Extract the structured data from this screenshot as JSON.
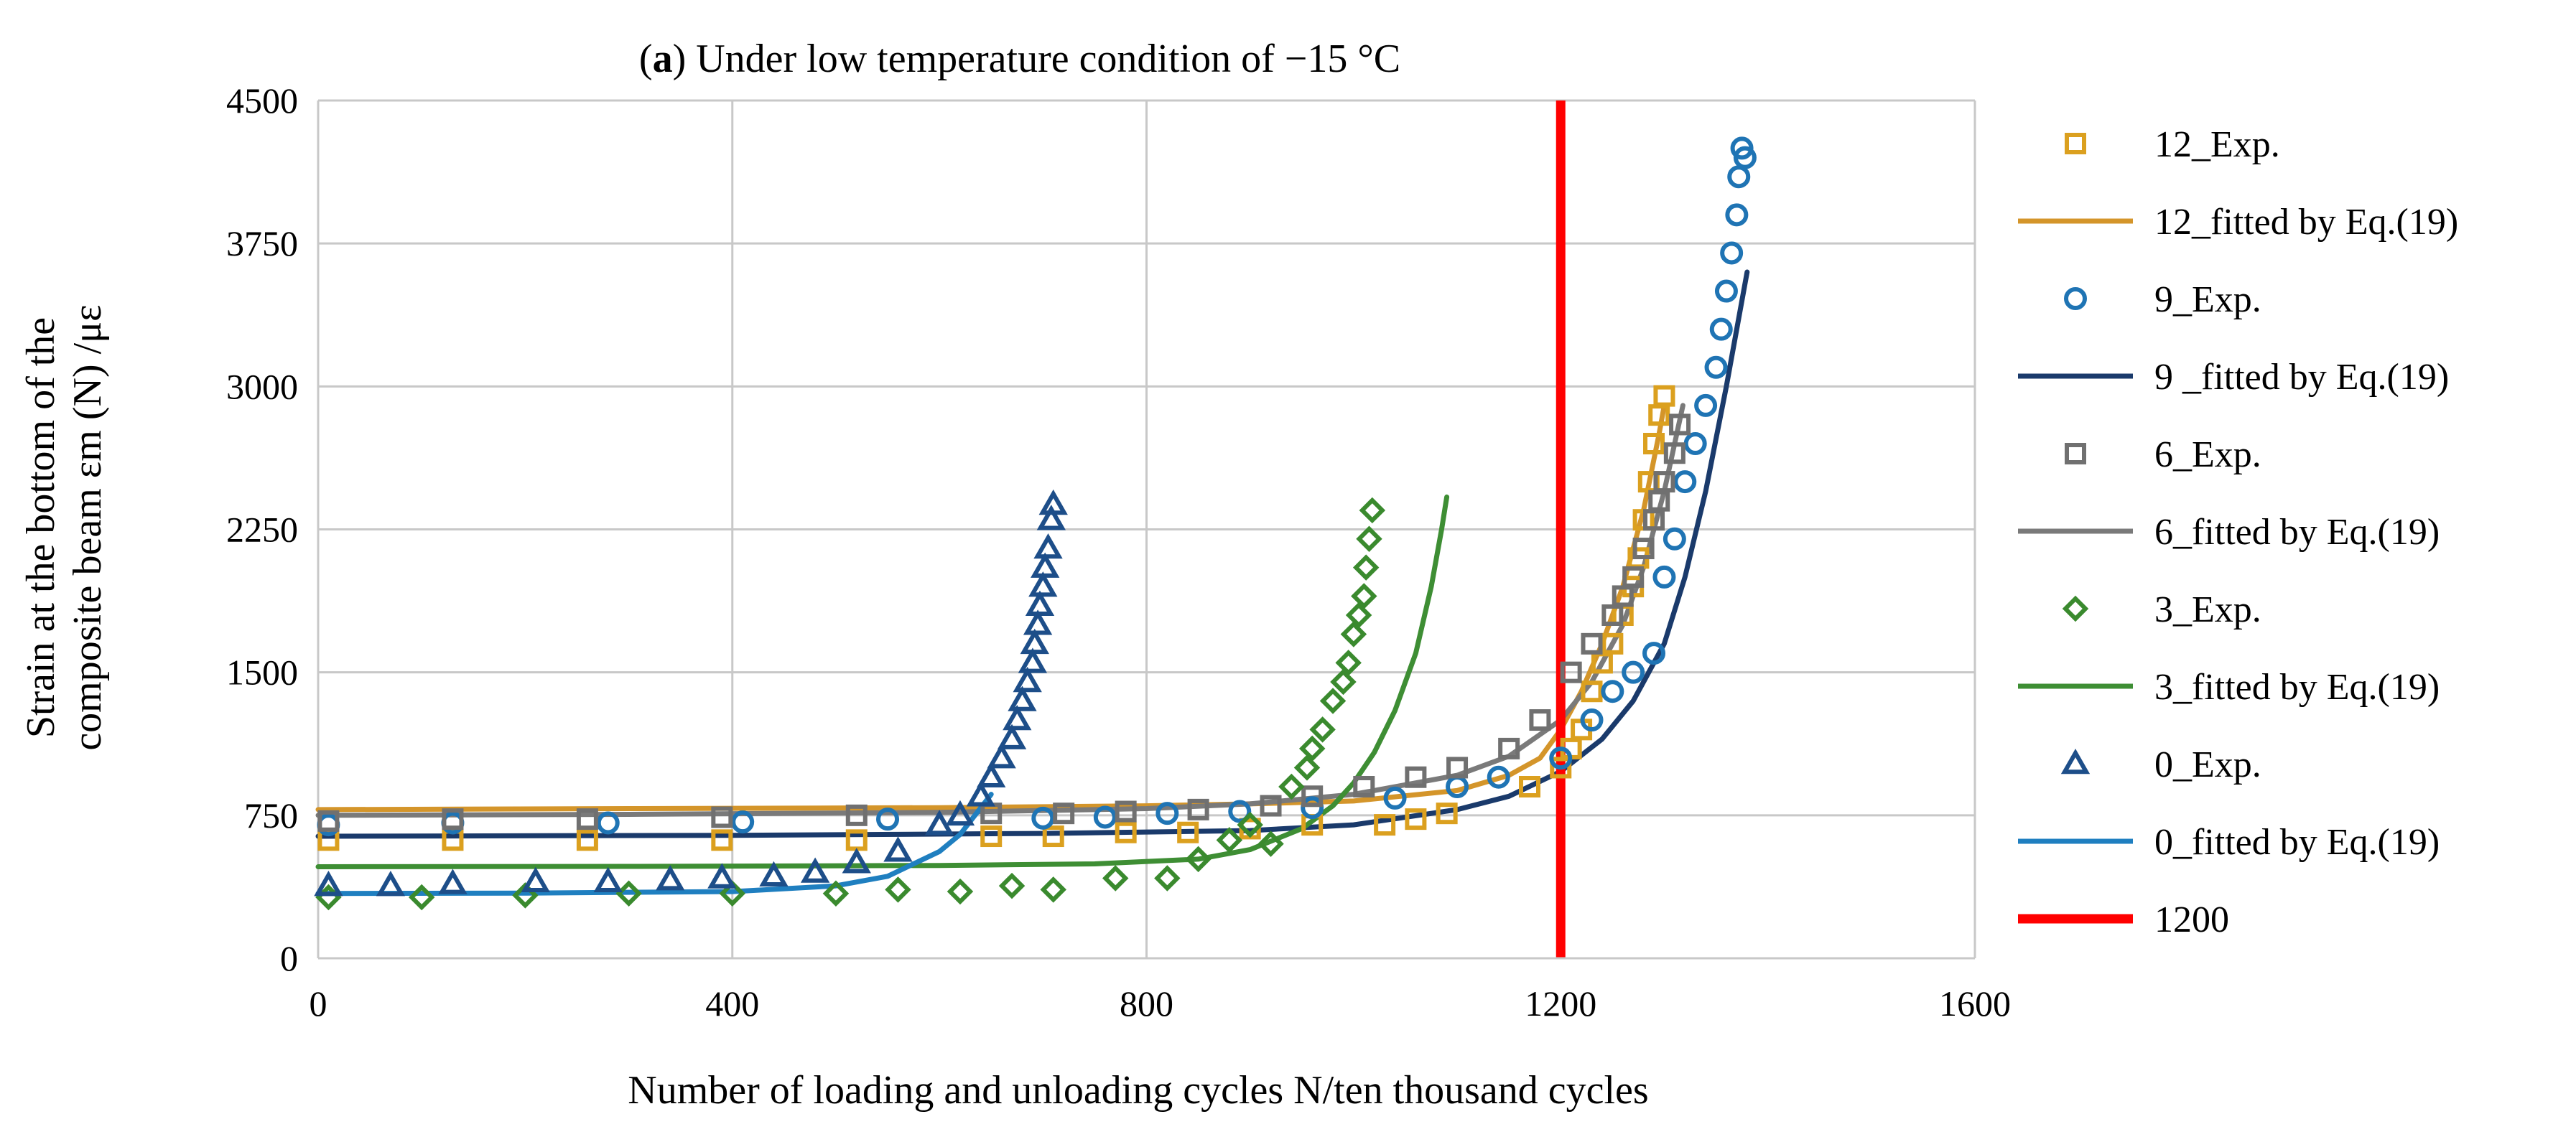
{
  "chart_data": {
    "type": "scatter",
    "title": "(a) Under low temperature condition of −15 °C",
    "title_bold_part": "a",
    "xlabel": "Number of loading and unloading cycles N/ten thousand cycles",
    "ylabel_line1": "Strain at the bottom of the",
    "ylabel_line2": "composite beam εm (N) /με",
    "xlim": [
      0,
      1600
    ],
    "ylim": [
      0,
      4500
    ],
    "xticks": [
      0,
      400,
      800,
      1200,
      1600
    ],
    "yticks": [
      0,
      750,
      1500,
      2250,
      3000,
      3750,
      4500
    ],
    "grid": true,
    "legend_position": "right",
    "reference_line": {
      "name": "1200",
      "x": 1200,
      "color": "#ff0000"
    },
    "series": [
      {
        "name": "12_Exp.",
        "kind": "scatter",
        "marker": "square",
        "color": "#dba01f",
        "points": [
          [
            10,
            620
          ],
          [
            130,
            620
          ],
          [
            260,
            620
          ],
          [
            390,
            620
          ],
          [
            520,
            620
          ],
          [
            650,
            640
          ],
          [
            710,
            640
          ],
          [
            780,
            660
          ],
          [
            840,
            660
          ],
          [
            900,
            680
          ],
          [
            960,
            700
          ],
          [
            1030,
            700
          ],
          [
            1060,
            730
          ],
          [
            1090,
            760
          ],
          [
            1170,
            900
          ],
          [
            1200,
            1000
          ],
          [
            1210,
            1100
          ],
          [
            1220,
            1200
          ],
          [
            1230,
            1400
          ],
          [
            1240,
            1550
          ],
          [
            1250,
            1650
          ],
          [
            1260,
            1800
          ],
          [
            1270,
            1950
          ],
          [
            1275,
            2100
          ],
          [
            1280,
            2300
          ],
          [
            1285,
            2500
          ],
          [
            1290,
            2700
          ],
          [
            1295,
            2850
          ],
          [
            1300,
            2950
          ]
        ]
      },
      {
        "name": "12_fitted by Eq.(19)",
        "kind": "line",
        "color": "#d4952a",
        "points": [
          [
            0,
            780
          ],
          [
            300,
            785
          ],
          [
            600,
            790
          ],
          [
            800,
            800
          ],
          [
            900,
            810
          ],
          [
            1000,
            825
          ],
          [
            1100,
            880
          ],
          [
            1150,
            960
          ],
          [
            1180,
            1050
          ],
          [
            1200,
            1200
          ],
          [
            1220,
            1400
          ],
          [
            1240,
            1650
          ],
          [
            1260,
            1950
          ],
          [
            1280,
            2350
          ],
          [
            1295,
            2750
          ],
          [
            1300,
            2900
          ]
        ]
      },
      {
        "name": "9_Exp.",
        "kind": "scatter",
        "marker": "circle",
        "color": "#1f74b4",
        "points": [
          [
            10,
            700
          ],
          [
            130,
            710
          ],
          [
            280,
            710
          ],
          [
            410,
            715
          ],
          [
            550,
            730
          ],
          [
            700,
            735
          ],
          [
            760,
            740
          ],
          [
            820,
            760
          ],
          [
            890,
            770
          ],
          [
            960,
            790
          ],
          [
            1040,
            840
          ],
          [
            1100,
            900
          ],
          [
            1140,
            950
          ],
          [
            1200,
            1050
          ],
          [
            1230,
            1250
          ],
          [
            1250,
            1400
          ],
          [
            1270,
            1500
          ],
          [
            1290,
            1600
          ],
          [
            1300,
            2000
          ],
          [
            1310,
            2200
          ],
          [
            1320,
            2500
          ],
          [
            1330,
            2700
          ],
          [
            1340,
            2900
          ],
          [
            1350,
            3100
          ],
          [
            1355,
            3300
          ],
          [
            1360,
            3500
          ],
          [
            1365,
            3700
          ],
          [
            1370,
            3900
          ],
          [
            1372,
            4100
          ],
          [
            1375,
            4250
          ],
          [
            1378,
            4200
          ]
        ]
      },
      {
        "name": "9 _fitted by Eq.(19)",
        "kind": "line",
        "color": "#1a3a6b",
        "points": [
          [
            0,
            640
          ],
          [
            400,
            645
          ],
          [
            700,
            655
          ],
          [
            900,
            670
          ],
          [
            1000,
            700
          ],
          [
            1100,
            780
          ],
          [
            1150,
            850
          ],
          [
            1200,
            980
          ],
          [
            1240,
            1150
          ],
          [
            1270,
            1350
          ],
          [
            1300,
            1650
          ],
          [
            1320,
            2000
          ],
          [
            1340,
            2450
          ],
          [
            1360,
            3000
          ],
          [
            1380,
            3600
          ]
        ]
      },
      {
        "name": "6_Exp.",
        "kind": "scatter",
        "marker": "square",
        "color": "#707070",
        "points": [
          [
            10,
            720
          ],
          [
            130,
            730
          ],
          [
            260,
            730
          ],
          [
            390,
            740
          ],
          [
            520,
            750
          ],
          [
            650,
            760
          ],
          [
            720,
            760
          ],
          [
            780,
            770
          ],
          [
            850,
            780
          ],
          [
            920,
            800
          ],
          [
            960,
            850
          ],
          [
            1010,
            900
          ],
          [
            1060,
            950
          ],
          [
            1100,
            1000
          ],
          [
            1150,
            1100
          ],
          [
            1180,
            1250
          ],
          [
            1210,
            1500
          ],
          [
            1230,
            1650
          ],
          [
            1250,
            1800
          ],
          [
            1260,
            1900
          ],
          [
            1270,
            2000
          ],
          [
            1280,
            2150
          ],
          [
            1290,
            2300
          ],
          [
            1295,
            2400
          ],
          [
            1300,
            2500
          ],
          [
            1310,
            2650
          ],
          [
            1315,
            2800
          ]
        ]
      },
      {
        "name": "6_fitted by Eq.(19)",
        "kind": "line",
        "color": "#7a7a7a",
        "points": [
          [
            0,
            750
          ],
          [
            300,
            755
          ],
          [
            600,
            765
          ],
          [
            800,
            785
          ],
          [
            900,
            810
          ],
          [
            1000,
            860
          ],
          [
            1100,
            960
          ],
          [
            1150,
            1060
          ],
          [
            1200,
            1250
          ],
          [
            1230,
            1450
          ],
          [
            1260,
            1750
          ],
          [
            1280,
            2050
          ],
          [
            1300,
            2450
          ],
          [
            1310,
            2700
          ],
          [
            1318,
            2900
          ]
        ]
      },
      {
        "name": "3_Exp.",
        "kind": "scatter",
        "marker": "diamond",
        "color": "#3a8a2e",
        "points": [
          [
            10,
            320
          ],
          [
            100,
            320
          ],
          [
            200,
            330
          ],
          [
            300,
            340
          ],
          [
            400,
            340
          ],
          [
            500,
            340
          ],
          [
            560,
            360
          ],
          [
            620,
            350
          ],
          [
            670,
            380
          ],
          [
            710,
            360
          ],
          [
            770,
            420
          ],
          [
            820,
            420
          ],
          [
            850,
            520
          ],
          [
            880,
            620
          ],
          [
            900,
            700
          ],
          [
            920,
            600
          ],
          [
            940,
            900
          ],
          [
            955,
            1000
          ],
          [
            960,
            1100
          ],
          [
            970,
            1200
          ],
          [
            980,
            1350
          ],
          [
            990,
            1450
          ],
          [
            995,
            1550
          ],
          [
            1000,
            1700
          ],
          [
            1005,
            1800
          ],
          [
            1010,
            1900
          ],
          [
            1012,
            2050
          ],
          [
            1015,
            2200
          ],
          [
            1018,
            2350
          ]
        ]
      },
      {
        "name": "3_fitted by Eq.(19)",
        "kind": "line",
        "color": "#3e8e34",
        "points": [
          [
            0,
            480
          ],
          [
            300,
            482
          ],
          [
            600,
            487
          ],
          [
            750,
            495
          ],
          [
            850,
            520
          ],
          [
            900,
            570
          ],
          [
            950,
            680
          ],
          [
            980,
            800
          ],
          [
            1000,
            920
          ],
          [
            1020,
            1080
          ],
          [
            1040,
            1300
          ],
          [
            1060,
            1600
          ],
          [
            1075,
            1950
          ],
          [
            1085,
            2250
          ],
          [
            1090,
            2420
          ]
        ]
      },
      {
        "name": "0_Exp.",
        "kind": "scatter",
        "marker": "triangle",
        "color": "#1d4e89",
        "points": [
          [
            10,
            380
          ],
          [
            70,
            380
          ],
          [
            130,
            390
          ],
          [
            210,
            400
          ],
          [
            280,
            400
          ],
          [
            340,
            410
          ],
          [
            390,
            420
          ],
          [
            440,
            430
          ],
          [
            480,
            450
          ],
          [
            520,
            500
          ],
          [
            560,
            560
          ],
          [
            600,
            700
          ],
          [
            620,
            750
          ],
          [
            640,
            850
          ],
          [
            650,
            950
          ],
          [
            660,
            1050
          ],
          [
            670,
            1150
          ],
          [
            675,
            1250
          ],
          [
            680,
            1350
          ],
          [
            685,
            1450
          ],
          [
            690,
            1550
          ],
          [
            692,
            1650
          ],
          [
            695,
            1750
          ],
          [
            697,
            1850
          ],
          [
            700,
            1950
          ],
          [
            702,
            2050
          ],
          [
            705,
            2150
          ],
          [
            708,
            2300
          ],
          [
            710,
            2380
          ]
        ]
      },
      {
        "name": "0_fitted by Eq.(19)",
        "kind": "line",
        "color": "#1f7fc0",
        "points": [
          [
            0,
            340
          ],
          [
            200,
            342
          ],
          [
            400,
            350
          ],
          [
            500,
            380
          ],
          [
            550,
            430
          ],
          [
            600,
            560
          ],
          [
            620,
            650
          ],
          [
            640,
            790
          ],
          [
            650,
            860
          ]
        ]
      }
    ]
  }
}
